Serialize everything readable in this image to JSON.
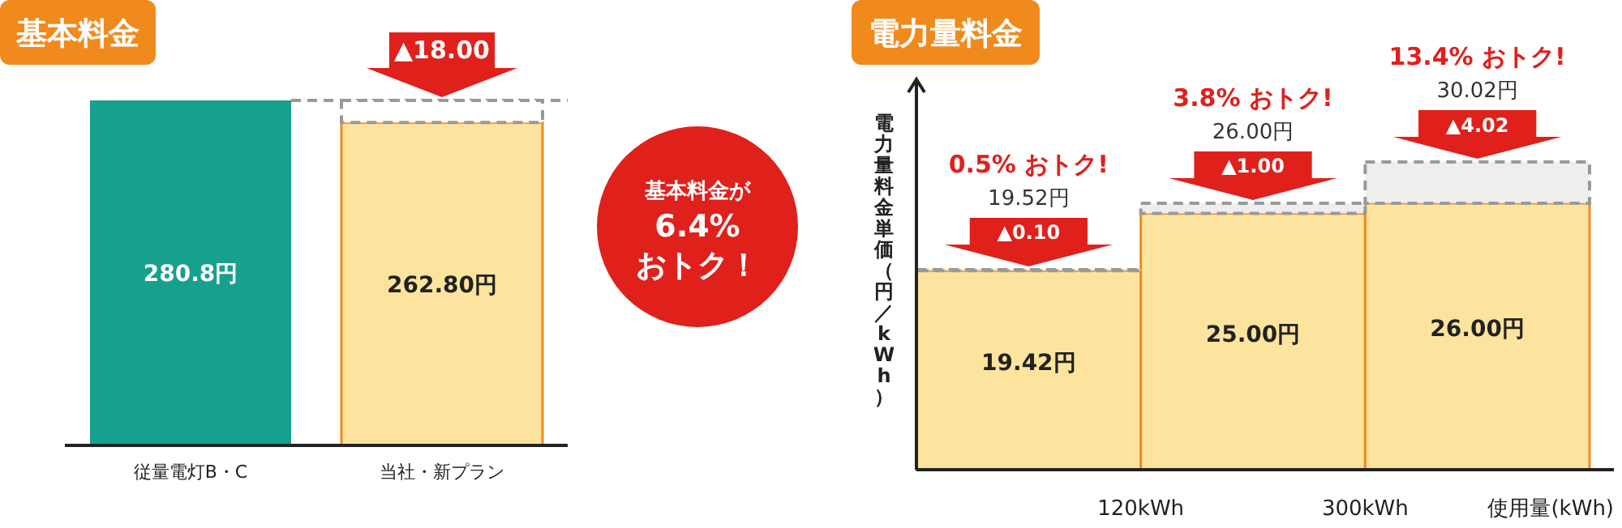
{
  "chart_data": [
    {
      "type": "bar",
      "title": "基本料金",
      "categories": [
        "従量電灯B・C",
        "当社・新プラン"
      ],
      "stacked": true,
      "series": [
        {
          "colors": [
            "#16a08e",
            "#fde49e"
          ],
          "values": [
            280.8,
            262.8
          ],
          "value_labels": [
            "280.8円",
            "262.80円"
          ]
        },
        {
          "color": "#ffffff",
          "values": [
            null,
            18.0
          ],
          "value_labels": [
            null,
            "▲18.00"
          ]
        }
      ],
      "annotations": [
        "基本料金が\n6.4%\nおトク！"
      ]
    },
    {
      "type": "bar",
      "title": "電力量料金",
      "ylabel": "電力量料金単価（円／kWh）",
      "xlabel": "使用量(kWh)",
      "categories": [
        null,
        null,
        null
      ],
      "stacked": true,
      "series": [
        {
          "color": "#fde49e",
          "values": [
            19.42,
            25.0,
            26.0
          ],
          "value_labels": [
            "19.42円",
            "25.00円",
            "26.00円"
          ]
        },
        {
          "color": "#eeeeee",
          "values": [
            0.1,
            1.0,
            4.02
          ],
          "value_labels": [
            "▲0.10",
            "▲1.00",
            "▲4.02"
          ]
        }
      ],
      "totals": [
        "19.52円",
        "26.00円",
        "30.02円"
      ],
      "annotations": [
        "0.5% おトク!",
        "3.8% おトク!",
        "13.4% おトク!",
        "120kWh",
        "300kWh"
      ]
    }
  ]
}
